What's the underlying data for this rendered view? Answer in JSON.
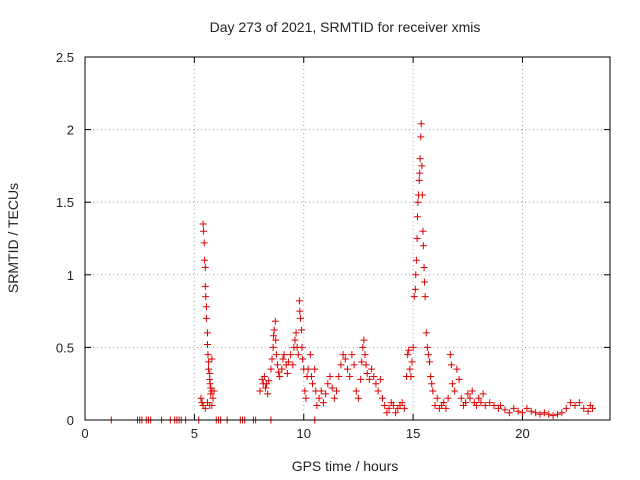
{
  "chart_data": {
    "type": "scatter",
    "title": "Day 273 of 2021, SRMTID for receiver xmis",
    "xlabel": "GPS time / hours",
    "ylabel": "SRMTID / TECUs",
    "xlim": [
      0,
      24
    ],
    "ylim": [
      0,
      2.5
    ],
    "xticks": [
      0,
      5,
      10,
      15,
      20
    ],
    "yticks": [
      0,
      0.5,
      1,
      1.5,
      2,
      2.5
    ],
    "xtick_labels": [
      "0",
      "5",
      "10",
      "15",
      "20"
    ],
    "ytick_labels": [
      "0",
      "0.5",
      "1",
      "1.5",
      "2",
      "2.5"
    ],
    "grid": true,
    "marker": "+",
    "color": "#dd0000",
    "series": [
      {
        "name": "SRMTID",
        "points": [
          [
            1.2,
            0
          ],
          [
            2.4,
            0
          ],
          [
            2.5,
            0
          ],
          [
            2.6,
            0
          ],
          [
            2.8,
            0
          ],
          [
            2.9,
            0
          ],
          [
            3.0,
            0
          ],
          [
            3.5,
            0
          ],
          [
            3.9,
            0
          ],
          [
            4.1,
            0
          ],
          [
            4.2,
            0
          ],
          [
            4.3,
            0
          ],
          [
            4.4,
            0
          ],
          [
            4.6,
            0
          ],
          [
            5.2,
            0
          ],
          [
            6.0,
            0
          ],
          [
            6.1,
            0
          ],
          [
            6.2,
            0
          ],
          [
            6.5,
            0
          ],
          [
            7.1,
            0
          ],
          [
            7.2,
            0
          ],
          [
            7.3,
            0
          ],
          [
            7.7,
            0
          ],
          [
            7.8,
            0
          ],
          [
            8.5,
            0
          ],
          [
            10.5,
            0
          ],
          [
            5.3,
            0.15
          ],
          [
            5.35,
            0.12
          ],
          [
            5.4,
            1.35
          ],
          [
            5.42,
            1.3
          ],
          [
            5.45,
            1.22
          ],
          [
            5.47,
            1.1
          ],
          [
            5.5,
            1.05
          ],
          [
            5.5,
            0.92
          ],
          [
            5.52,
            0.85
          ],
          [
            5.55,
            0.78
          ],
          [
            5.55,
            0.7
          ],
          [
            5.6,
            0.6
          ],
          [
            5.6,
            0.52
          ],
          [
            5.62,
            0.45
          ],
          [
            5.65,
            0.4
          ],
          [
            5.65,
            0.35
          ],
          [
            5.7,
            0.32
          ],
          [
            5.7,
            0.28
          ],
          [
            5.72,
            0.25
          ],
          [
            5.75,
            0.22
          ],
          [
            5.75,
            0.18
          ],
          [
            5.8,
            0.2
          ],
          [
            5.8,
            0.42
          ],
          [
            5.85,
            0.15
          ],
          [
            5.9,
            0.2
          ],
          [
            5.4,
            0.1
          ],
          [
            5.5,
            0.08
          ],
          [
            5.6,
            0.12
          ],
          [
            5.7,
            0.1
          ],
          [
            5.8,
            0.1
          ],
          [
            8.0,
            0.2
          ],
          [
            8.1,
            0.28
          ],
          [
            8.15,
            0.25
          ],
          [
            8.2,
            0.3
          ],
          [
            8.25,
            0.22
          ],
          [
            8.3,
            0.25
          ],
          [
            8.35,
            0.18
          ],
          [
            8.4,
            0.27
          ],
          [
            8.5,
            0.35
          ],
          [
            8.55,
            0.42
          ],
          [
            8.6,
            0.5
          ],
          [
            8.62,
            0.58
          ],
          [
            8.65,
            0.62
          ],
          [
            8.7,
            0.68
          ],
          [
            8.72,
            0.55
          ],
          [
            8.75,
            0.45
          ],
          [
            8.8,
            0.38
          ],
          [
            8.85,
            0.33
          ],
          [
            8.9,
            0.3
          ],
          [
            9.0,
            0.35
          ],
          [
            9.05,
            0.42
          ],
          [
            9.1,
            0.45
          ],
          [
            9.2,
            0.38
          ],
          [
            9.25,
            0.32
          ],
          [
            9.3,
            0.4
          ],
          [
            9.4,
            0.45
          ],
          [
            9.5,
            0.38
          ],
          [
            9.55,
            0.5
          ],
          [
            9.6,
            0.55
          ],
          [
            9.65,
            0.6
          ],
          [
            9.7,
            0.5
          ],
          [
            9.75,
            0.45
          ],
          [
            9.8,
            0.82
          ],
          [
            9.82,
            0.75
          ],
          [
            9.85,
            0.7
          ],
          [
            9.9,
            0.62
          ],
          [
            9.92,
            0.5
          ],
          [
            9.95,
            0.42
          ],
          [
            10.0,
            0.35
          ],
          [
            10.05,
            0.2
          ],
          [
            10.1,
            0.15
          ],
          [
            10.15,
            0.3
          ],
          [
            10.2,
            0.35
          ],
          [
            10.3,
            0.45
          ],
          [
            10.35,
            0.3
          ],
          [
            10.4,
            0.25
          ],
          [
            10.5,
            0.35
          ],
          [
            10.55,
            0.2
          ],
          [
            10.6,
            0.1
          ],
          [
            10.7,
            0.15
          ],
          [
            10.8,
            0.2
          ],
          [
            10.9,
            0.12
          ],
          [
            11.0,
            0.18
          ],
          [
            11.1,
            0.25
          ],
          [
            11.2,
            0.3
          ],
          [
            11.3,
            0.22
          ],
          [
            11.4,
            0.15
          ],
          [
            11.5,
            0.2
          ],
          [
            11.6,
            0.3
          ],
          [
            11.7,
            0.38
          ],
          [
            11.8,
            0.45
          ],
          [
            11.9,
            0.42
          ],
          [
            12.0,
            0.35
          ],
          [
            12.1,
            0.3
          ],
          [
            12.2,
            0.45
          ],
          [
            12.3,
            0.38
          ],
          [
            12.4,
            0.2
          ],
          [
            12.5,
            0.15
          ],
          [
            12.6,
            0.28
          ],
          [
            12.65,
            0.4
          ],
          [
            12.7,
            0.5
          ],
          [
            12.75,
            0.55
          ],
          [
            12.8,
            0.45
          ],
          [
            12.85,
            0.38
          ],
          [
            12.9,
            0.32
          ],
          [
            13.0,
            0.28
          ],
          [
            13.1,
            0.35
          ],
          [
            13.2,
            0.3
          ],
          [
            13.3,
            0.25
          ],
          [
            13.4,
            0.2
          ],
          [
            13.5,
            0.28
          ],
          [
            13.6,
            0.15
          ],
          [
            13.7,
            0.1
          ],
          [
            13.8,
            0.05
          ],
          [
            13.9,
            0.08
          ],
          [
            14.0,
            0.12
          ],
          [
            14.1,
            0.1
          ],
          [
            14.2,
            0.05
          ],
          [
            14.3,
            0.08
          ],
          [
            14.4,
            0.1
          ],
          [
            14.5,
            0.12
          ],
          [
            14.6,
            0.08
          ],
          [
            14.7,
            0.3
          ],
          [
            14.75,
            0.45
          ],
          [
            14.8,
            0.48
          ],
          [
            14.85,
            0.35
          ],
          [
            14.9,
            0.3
          ],
          [
            14.95,
            0.4
          ],
          [
            15.0,
            0.5
          ],
          [
            15.05,
            0.85
          ],
          [
            15.1,
            0.9
          ],
          [
            15.12,
            1.0
          ],
          [
            15.15,
            1.1
          ],
          [
            15.18,
            1.25
          ],
          [
            15.2,
            1.4
          ],
          [
            15.22,
            1.5
          ],
          [
            15.25,
            1.55
          ],
          [
            15.28,
            1.65
          ],
          [
            15.3,
            1.7
          ],
          [
            15.32,
            1.8
          ],
          [
            15.35,
            1.95
          ],
          [
            15.37,
            2.04
          ],
          [
            15.4,
            1.75
          ],
          [
            15.42,
            1.55
          ],
          [
            15.45,
            1.3
          ],
          [
            15.47,
            1.2
          ],
          [
            15.5,
            1.05
          ],
          [
            15.52,
            0.95
          ],
          [
            15.55,
            0.85
          ],
          [
            15.6,
            0.6
          ],
          [
            15.65,
            0.5
          ],
          [
            15.7,
            0.45
          ],
          [
            15.75,
            0.4
          ],
          [
            15.8,
            0.3
          ],
          [
            15.85,
            0.25
          ],
          [
            15.9,
            0.2
          ],
          [
            16.0,
            0.1
          ],
          [
            16.1,
            0.15
          ],
          [
            16.2,
            0.08
          ],
          [
            16.3,
            0.1
          ],
          [
            16.4,
            0.12
          ],
          [
            16.5,
            0.08
          ],
          [
            16.6,
            0.15
          ],
          [
            16.7,
            0.45
          ],
          [
            16.75,
            0.38
          ],
          [
            16.8,
            0.25
          ],
          [
            16.9,
            0.2
          ],
          [
            17.0,
            0.35
          ],
          [
            17.1,
            0.28
          ],
          [
            17.2,
            0.15
          ],
          [
            17.3,
            0.1
          ],
          [
            17.4,
            0.12
          ],
          [
            17.5,
            0.18
          ],
          [
            17.6,
            0.15
          ],
          [
            17.7,
            0.2
          ],
          [
            17.8,
            0.12
          ],
          [
            17.9,
            0.1
          ],
          [
            18.0,
            0.15
          ],
          [
            18.1,
            0.12
          ],
          [
            18.2,
            0.18
          ],
          [
            18.3,
            0.1
          ],
          [
            18.5,
            0.12
          ],
          [
            18.7,
            0.1
          ],
          [
            18.9,
            0.08
          ],
          [
            19.0,
            0.1
          ],
          [
            19.2,
            0.07
          ],
          [
            19.4,
            0.05
          ],
          [
            19.6,
            0.08
          ],
          [
            19.8,
            0.06
          ],
          [
            20.0,
            0.05
          ],
          [
            20.2,
            0.08
          ],
          [
            20.4,
            0.06
          ],
          [
            20.6,
            0.05
          ],
          [
            20.8,
            0.04
          ],
          [
            21.0,
            0.05
          ],
          [
            21.2,
            0.04
          ],
          [
            21.4,
            0.03
          ],
          [
            21.6,
            0.04
          ],
          [
            21.8,
            0.05
          ],
          [
            22.0,
            0.08
          ],
          [
            22.2,
            0.12
          ],
          [
            22.4,
            0.1
          ],
          [
            22.6,
            0.12
          ],
          [
            22.8,
            0.08
          ],
          [
            23.0,
            0.06
          ],
          [
            23.1,
            0.1
          ],
          [
            23.2,
            0.08
          ]
        ]
      }
    ]
  }
}
